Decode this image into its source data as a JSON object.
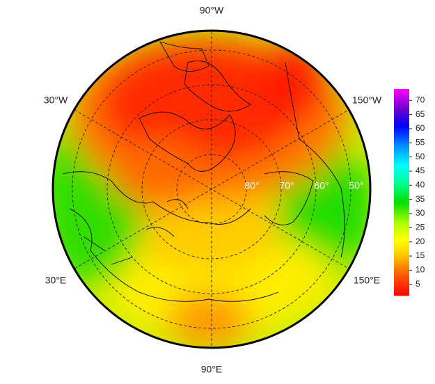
{
  "map": {
    "longitude_labels": {
      "top": "90°W",
      "upper_left": "30°W",
      "upper_right": "150°W",
      "lower_left": "30°E",
      "lower_right": "150°E",
      "bottom": "90°E"
    },
    "latitude_labels": [
      "80°",
      "70°",
      "60°",
      "50°"
    ]
  },
  "colorbar": {
    "lim": [
      1,
      74
    ],
    "ticks": [
      5,
      10,
      15,
      20,
      25,
      30,
      35,
      40,
      45,
      50,
      55,
      60,
      65,
      70
    ]
  }
}
